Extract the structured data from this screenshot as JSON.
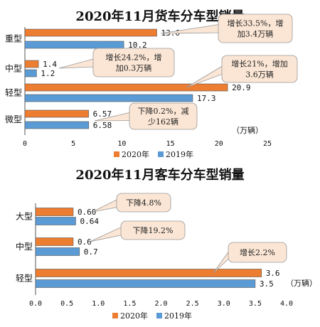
{
  "colors": {
    "s2020": "#ED7D31",
    "s2019": "#5B9BD5",
    "callout_fill": "#FBE6D5",
    "callout_stroke": "#999999"
  },
  "chart_data": [
    {
      "type": "bar",
      "orientation": "horizontal",
      "title": "2020年11月货车分车型销量",
      "unit": "（万辆）",
      "categories": [
        "重型",
        "中型",
        "轻型",
        "微型"
      ],
      "series": [
        {
          "name": "2020年",
          "values": [
            13.6,
            1.4,
            20.9,
            6.57
          ]
        },
        {
          "name": "2019年",
          "values": [
            10.2,
            1.2,
            17.3,
            6.58
          ]
        }
      ],
      "value_labels": [
        {
          "s2020": "13.6",
          "s2019": "10.2"
        },
        {
          "s2020": "1.4",
          "s2019": "1.2"
        },
        {
          "s2020": "20.9",
          "s2019": "17.3"
        },
        {
          "s2020": "6.57",
          "s2019": "6.58"
        }
      ],
      "xlim": [
        0,
        25
      ],
      "ticks": [
        "0",
        "5",
        "10",
        "15",
        "20",
        "25"
      ],
      "legend_position": "bottom",
      "annotations": [
        {
          "lines": [
            "增长33.5%，增",
            "加3.4万辆"
          ]
        },
        {
          "lines": [
            "增长24.2%，增",
            "加0.3万辆"
          ]
        },
        {
          "lines": [
            "增长21%，增加",
            "3.6万辆"
          ]
        },
        {
          "lines": [
            "下降0.2%，减",
            "少162辆"
          ]
        }
      ]
    },
    {
      "type": "bar",
      "orientation": "horizontal",
      "title": "2020年11月客车分车型销量",
      "unit": "（万辆）",
      "categories": [
        "大型",
        "中型",
        "轻型"
      ],
      "series": [
        {
          "name": "2020年",
          "values": [
            0.6,
            0.6,
            3.6
          ]
        },
        {
          "name": "2019年",
          "values": [
            0.64,
            0.7,
            3.5
          ]
        }
      ],
      "value_labels": [
        {
          "s2020": "0.60",
          "s2019": "0.64"
        },
        {
          "s2020": "0.6",
          "s2019": "0.7"
        },
        {
          "s2020": "3.6",
          "s2019": "3.5"
        }
      ],
      "xlim": [
        0,
        4
      ],
      "ticks": [
        "0.0",
        "0.5",
        "1.0",
        "1.5",
        "2.0",
        "2.5",
        "3.0",
        "3.5",
        "4.0"
      ],
      "legend_position": "bottom",
      "annotations": [
        {
          "lines": [
            "下降4.8%"
          ]
        },
        {
          "lines": [
            "下降19.2%"
          ]
        },
        {
          "lines": [
            "增长2.2%"
          ]
        }
      ]
    }
  ]
}
